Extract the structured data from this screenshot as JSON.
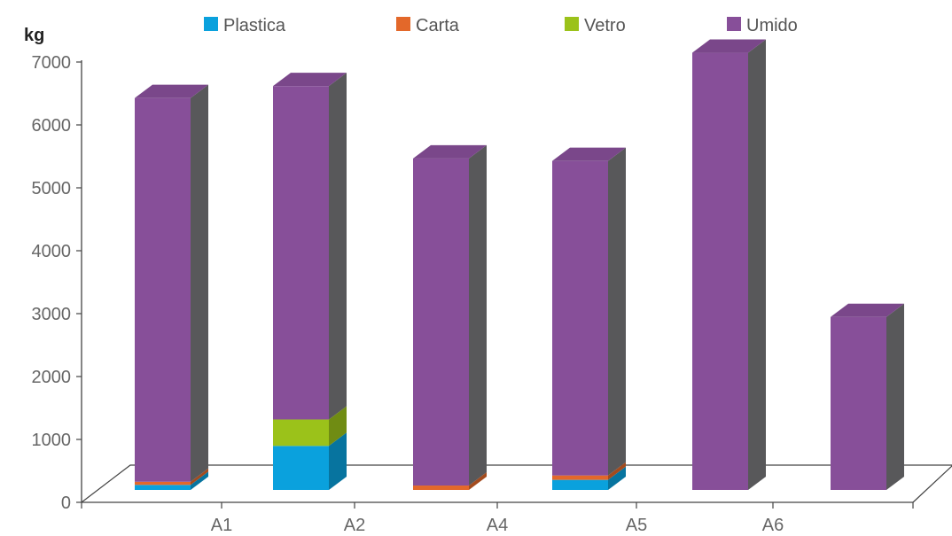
{
  "chart_data": {
    "type": "bar",
    "stacked": true,
    "three_d": true,
    "title": "",
    "xlabel": "",
    "ylabel": "kg",
    "ylim": [
      0,
      7000
    ],
    "yticks": [
      0,
      1000,
      2000,
      3000,
      4000,
      5000,
      6000,
      7000
    ],
    "categories": [
      "A1",
      "A2",
      "A4",
      "A5",
      "A6",
      ""
    ],
    "legend_position": "top",
    "grid": false,
    "series": [
      {
        "name": "Plastica",
        "color": "#0aa1dd",
        "values": [
          80,
          700,
          0,
          160,
          0,
          0
        ]
      },
      {
        "name": "Carta",
        "color": "#e3682a",
        "values": [
          50,
          0,
          70,
          70,
          0,
          0
        ]
      },
      {
        "name": "Vetro",
        "color": "#9bc21a",
        "values": [
          0,
          420,
          0,
          0,
          0,
          0
        ]
      },
      {
        "name": "Umido",
        "color": "#874f99",
        "values": [
          6100,
          5300,
          5200,
          5000,
          6950,
          2750
        ]
      }
    ]
  }
}
